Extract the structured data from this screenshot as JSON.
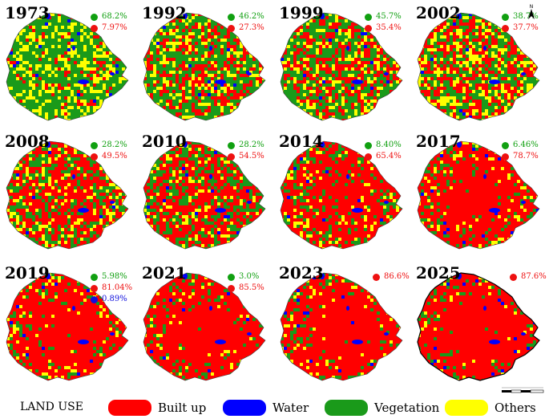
{
  "colors": {
    "built_up": "#ff0000",
    "water": "#0000ff",
    "vegetation": "#1a9a1a",
    "others": "#ffff00",
    "stat_veg": "#11a011",
    "stat_built": "#ee1111",
    "stat_water": "#1010dd"
  },
  "panels": [
    {
      "year": "1973",
      "stats": [
        {
          "type": "vegetation",
          "text": "68.2%"
        },
        {
          "type": "built",
          "text": "7.97%"
        }
      ],
      "mix": {
        "built": 0.1,
        "veg": 0.62,
        "others": 0.24,
        "water": 0.03
      }
    },
    {
      "year": "1992",
      "stats": [
        {
          "type": "vegetation",
          "text": "46.2%"
        },
        {
          "type": "built",
          "text": "27.3%"
        }
      ],
      "mix": {
        "built": 0.3,
        "veg": 0.47,
        "others": 0.19,
        "water": 0.03
      }
    },
    {
      "year": "1999",
      "stats": [
        {
          "type": "vegetation",
          "text": "45.7%"
        },
        {
          "type": "built",
          "text": "35.4%"
        }
      ],
      "mix": {
        "built": 0.37,
        "veg": 0.44,
        "others": 0.16,
        "water": 0.03
      }
    },
    {
      "year": "2002",
      "stats": [
        {
          "type": "vegetation",
          "text": "38.7%"
        },
        {
          "type": "built",
          "text": "37.7%"
        }
      ],
      "mix": {
        "built": 0.39,
        "veg": 0.36,
        "others": 0.22,
        "water": 0.02
      }
    },
    {
      "year": "2008",
      "stats": [
        {
          "type": "vegetation",
          "text": "28.2%"
        },
        {
          "type": "built",
          "text": "49.5%"
        }
      ],
      "mix": {
        "built": 0.52,
        "veg": 0.3,
        "others": 0.15,
        "water": 0.02
      }
    },
    {
      "year": "2010",
      "stats": [
        {
          "type": "vegetation",
          "text": "28.2%"
        },
        {
          "type": "built",
          "text": "54.5%"
        }
      ],
      "mix": {
        "built": 0.56,
        "veg": 0.3,
        "others": 0.11,
        "water": 0.02
      }
    },
    {
      "year": "2014",
      "stats": [
        {
          "type": "vegetation",
          "text": "8.40%"
        },
        {
          "type": "built",
          "text": "65.4%"
        }
      ],
      "mix": {
        "built": 0.7,
        "veg": 0.2,
        "others": 0.08,
        "water": 0.02
      }
    },
    {
      "year": "2017",
      "stats": [
        {
          "type": "vegetation",
          "text": "6.46%"
        },
        {
          "type": "built",
          "text": "78.7%"
        }
      ],
      "mix": {
        "built": 0.8,
        "veg": 0.12,
        "others": 0.06,
        "water": 0.02
      }
    },
    {
      "year": "2019",
      "stats": [
        {
          "type": "vegetation",
          "text": "5.98%"
        },
        {
          "type": "built",
          "text": "81.04%"
        },
        {
          "type": "water",
          "text": "0.89%"
        }
      ],
      "mix": {
        "built": 0.85,
        "veg": 0.09,
        "others": 0.04,
        "water": 0.02
      }
    },
    {
      "year": "2021",
      "stats": [
        {
          "type": "vegetation",
          "text": "3.0%"
        },
        {
          "type": "built",
          "text": "85.5%"
        }
      ],
      "mix": {
        "built": 0.87,
        "veg": 0.08,
        "others": 0.03,
        "water": 0.02
      }
    },
    {
      "year": "2023",
      "stats": [
        {
          "type": "built",
          "text": "86.6%"
        }
      ],
      "mix": {
        "built": 0.88,
        "veg": 0.07,
        "others": 0.03,
        "water": 0.02
      }
    },
    {
      "year": "2025",
      "stats": [
        {
          "type": "built",
          "text": "87.6%"
        }
      ],
      "mix": {
        "built": 0.89,
        "veg": 0.07,
        "others": 0.02,
        "water": 0.02
      }
    }
  ],
  "legend": {
    "title": "LAND USE",
    "items": [
      {
        "label": "Built up",
        "color": "#ff0000"
      },
      {
        "label": "Water",
        "color": "#0000ff"
      },
      {
        "label": "Vegetation",
        "color": "#1a9a1a"
      },
      {
        "label": "Others",
        "color": "#ffff00"
      }
    ]
  },
  "north_arrow": {
    "label": "N"
  }
}
